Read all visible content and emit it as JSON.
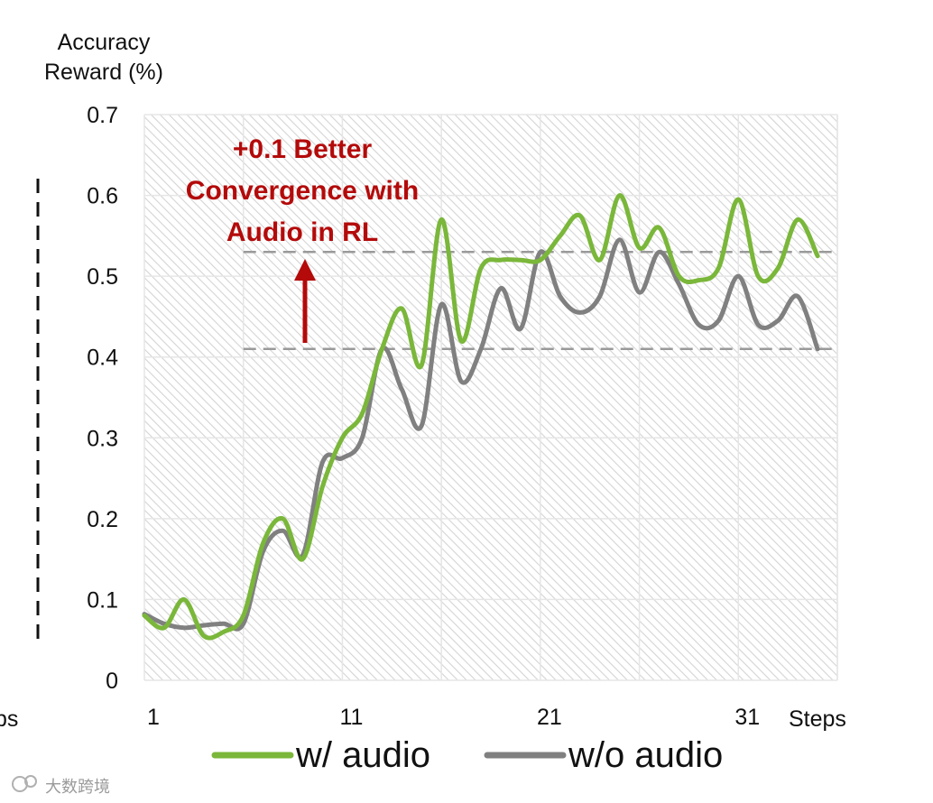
{
  "chart_data": {
    "type": "line",
    "ylabel_lines": [
      "Accuracy",
      "Reward (%)"
    ],
    "xlabel": "Steps",
    "ylim": [
      0,
      0.7
    ],
    "xlim": [
      1,
      36
    ],
    "y_ticks": [
      "0",
      "0.1",
      "0.2",
      "0.3",
      "0.4",
      "0.5",
      "0.6",
      "0.7"
    ],
    "x_ticks": [
      1,
      11,
      21,
      31
    ],
    "grid": true,
    "background_pattern": "diagonal-hatch",
    "series": [
      {
        "name": "w/ audio",
        "color": "#7ab73a",
        "x": [
          1,
          2,
          3,
          4,
          5,
          6,
          7,
          8,
          9,
          10,
          11,
          12,
          13,
          14,
          15,
          16,
          17,
          18,
          19,
          20,
          21,
          22,
          23,
          24,
          25,
          26,
          27,
          28,
          29,
          30,
          31,
          32,
          33,
          34,
          35,
          36
        ],
        "values": [
          0.08,
          0.065,
          0.1,
          0.055,
          0.06,
          0.08,
          0.17,
          0.2,
          0.15,
          0.24,
          0.3,
          0.33,
          0.41,
          0.46,
          0.39,
          0.57,
          0.42,
          0.51,
          0.52,
          0.52,
          0.52,
          0.55,
          0.575,
          0.52,
          0.6,
          0.535,
          0.56,
          0.5,
          0.495,
          0.51,
          0.595,
          0.5,
          0.51,
          0.57,
          0.525,
          null
        ]
      },
      {
        "name": "w/o audio",
        "color": "#808080",
        "x": [
          1,
          2,
          3,
          4,
          5,
          6,
          7,
          8,
          9,
          10,
          11,
          12,
          13,
          14,
          15,
          16,
          17,
          18,
          19,
          20,
          21,
          22,
          23,
          24,
          25,
          26,
          27,
          28,
          29,
          30,
          31,
          32,
          33,
          34,
          35,
          36
        ],
        "values": [
          0.082,
          0.07,
          0.065,
          0.068,
          0.07,
          0.07,
          0.16,
          0.185,
          0.155,
          0.27,
          0.275,
          0.3,
          0.41,
          0.36,
          0.315,
          0.465,
          0.37,
          0.41,
          0.485,
          0.435,
          0.53,
          0.475,
          0.455,
          0.475,
          0.545,
          0.48,
          0.53,
          0.49,
          0.44,
          0.445,
          0.5,
          0.44,
          0.445,
          0.475,
          0.41,
          null
        ]
      }
    ],
    "reference_lines": [
      {
        "y": 0.53,
        "x_from": 6,
        "x_to": 36,
        "style": "dashed"
      },
      {
        "y": 0.41,
        "x_from": 6,
        "x_to": 36,
        "style": "dashed"
      }
    ],
    "annotation": {
      "lines": [
        "+0.1 Better",
        "Convergence with",
        "Audio in RL"
      ],
      "color": "#b40a0a"
    },
    "legend_position": "bottom"
  },
  "edge_fragment": "ps",
  "watermark": "大数跨境"
}
